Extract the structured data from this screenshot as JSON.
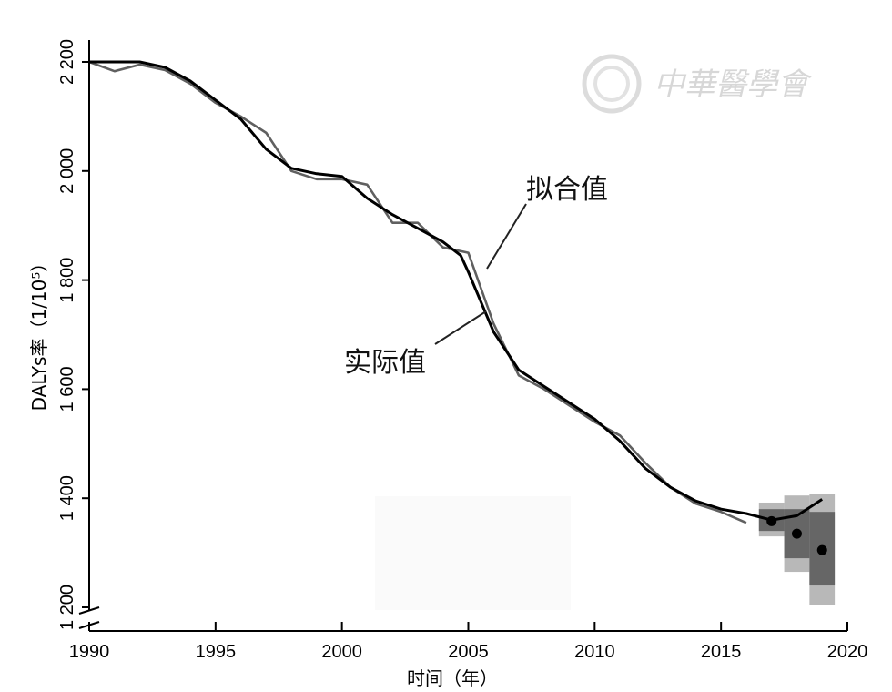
{
  "chart_data": {
    "type": "line",
    "title": "",
    "xlabel": "时间（年）",
    "ylabel": "DALYs率（1/10⁵）",
    "xlim": [
      1990,
      2020
    ],
    "ylim": [
      1200,
      2240
    ],
    "y_axis_break": true,
    "x_ticks": [
      "1990",
      "1995",
      "2000",
      "2005",
      "2010",
      "2015",
      "2020"
    ],
    "y_ticks": [
      "1 200",
      "1 400",
      "1 600",
      "1 800",
      "2 000",
      "2 200"
    ],
    "y_tick_values": [
      1200,
      1400,
      1600,
      1800,
      2000,
      2200
    ],
    "x_tick_values": [
      1990,
      1995,
      2000,
      2005,
      2010,
      2015,
      2020
    ],
    "series": [
      {
        "name": "实际值",
        "color": "#000000",
        "x": [
          1990,
          1991,
          1992,
          1993,
          1994,
          1995,
          1996,
          1997,
          1998,
          1999,
          2000,
          2001,
          2002,
          2003,
          2004,
          2004.7,
          2005,
          2005.5,
          2006,
          2007,
          2008,
          2009,
          2010,
          2011,
          2012,
          2013,
          2014,
          2015,
          2016,
          2017,
          2018,
          2019
        ],
        "y": [
          2200,
          2200,
          2200,
          2190,
          2165,
          2130,
          2095,
          2040,
          2005,
          1995,
          1990,
          1950,
          1920,
          1895,
          1870,
          1845,
          1815,
          1760,
          1705,
          1635,
          1605,
          1575,
          1545,
          1505,
          1455,
          1420,
          1395,
          1380,
          1372,
          1360,
          1368,
          1398
        ]
      },
      {
        "name": "拟合值",
        "color": "#606060",
        "x": [
          1990,
          1991,
          1992,
          1993,
          1994,
          1995,
          1996,
          1997,
          1998,
          1999,
          2000,
          2001,
          2002,
          2003,
          2004,
          2005,
          2006,
          2007,
          2008,
          2009,
          2010,
          2011,
          2012,
          2013,
          2014,
          2015,
          2016
        ],
        "y": [
          2200,
          2183,
          2195,
          2185,
          2160,
          2125,
          2100,
          2070,
          2000,
          1985,
          1985,
          1975,
          1905,
          1905,
          1860,
          1850,
          1720,
          1625,
          1600,
          1570,
          1540,
          1515,
          1465,
          1420,
          1390,
          1375,
          1355
        ]
      }
    ],
    "forecast_points": {
      "color": "#000000",
      "x": [
        2017,
        2018,
        2019
      ],
      "y": [
        1358,
        1335,
        1305
      ]
    },
    "prediction_intervals": {
      "x": [
        2017,
        2018,
        2019
      ],
      "inner": [
        [
          1340,
          1380
        ],
        [
          1290,
          1380
        ],
        [
          1240,
          1375
        ]
      ],
      "outer": [
        [
          1330,
          1392
        ],
        [
          1265,
          1405
        ],
        [
          1205,
          1408
        ]
      ],
      "inner_color": "#666666",
      "outer_color": "#b8b8b8"
    },
    "annotations": [
      {
        "text": "拟合值",
        "series": "拟合值"
      },
      {
        "text": "实际值",
        "series": "实际值"
      }
    ],
    "watermark": "中華醫學會",
    "grid": false,
    "legend": "none"
  }
}
